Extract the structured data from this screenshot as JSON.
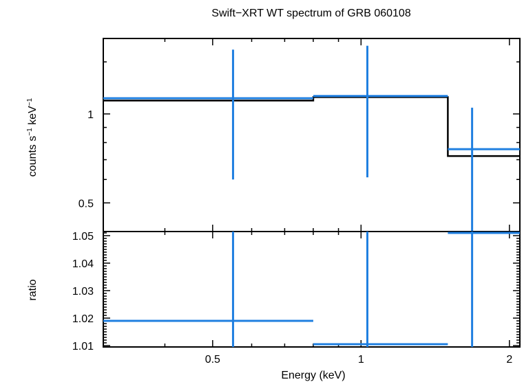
{
  "chart_data": [
    {
      "type": "step",
      "title": "Swift−XRT WT spectrum of GRB 060108",
      "xlabel": "",
      "ylabel_main": "counts s",
      "ylabel_exp1": "−1",
      "ylabel_mid": " keV",
      "ylabel_exp2": "−1",
      "xscale": "log",
      "yscale": "log",
      "xlim": [
        0.3,
        2.1
      ],
      "ylim": [
        0.4,
        1.8
      ],
      "yticks": [
        0.5,
        1
      ],
      "ytick_labels": [
        "0.5",
        "1"
      ],
      "data": {
        "name": "data",
        "color": "#1f7fe0",
        "points": [
          {
            "x": 0.55,
            "xlo": 0.3,
            "xhi": 0.8,
            "y": 1.13,
            "ylo": 0.6,
            "yhi": 1.65
          },
          {
            "x": 1.03,
            "xlo": 0.8,
            "xhi": 1.5,
            "y": 1.15,
            "ylo": 0.61,
            "yhi": 1.7
          },
          {
            "x": 1.68,
            "xlo": 1.5,
            "xhi": 2.1,
            "y": 0.76,
            "ylo": 0.4,
            "yhi": 1.05
          }
        ]
      },
      "model": {
        "name": "model",
        "color": "#000000",
        "steps": [
          {
            "xlo": 0.3,
            "xhi": 0.8,
            "y": 1.11
          },
          {
            "xlo": 0.8,
            "xhi": 1.5,
            "y": 1.14
          },
          {
            "xlo": 1.5,
            "xhi": 2.1,
            "y": 0.72
          }
        ]
      }
    },
    {
      "type": "step",
      "xlabel": "Energy (keV)",
      "ylabel": "ratio",
      "xscale": "log",
      "xlim": [
        0.3,
        2.1
      ],
      "ylim": [
        1.0095,
        1.0515
      ],
      "yticks": [
        1.01,
        1.02,
        1.03,
        1.04,
        1.05
      ],
      "ytick_labels": [
        "1.01",
        "1.02",
        "1.03",
        "1.04",
        "1.05"
      ],
      "xticks": [
        0.5,
        1,
        2
      ],
      "xtick_labels": [
        "0.5",
        "1",
        "2"
      ],
      "data": {
        "name": "ratio",
        "color": "#1f7fe0",
        "points": [
          {
            "x": 0.55,
            "xlo": 0.3,
            "xhi": 0.8,
            "y": 1.019,
            "ylo": 1.0095,
            "yhi": 1.0515
          },
          {
            "x": 1.03,
            "xlo": 0.8,
            "xhi": 1.5,
            "y": 1.0105,
            "ylo": 1.0095,
            "yhi": 1.0515
          },
          {
            "x": 1.68,
            "xlo": 1.5,
            "xhi": 2.1,
            "y": 1.051,
            "ylo": 1.0095,
            "yhi": 1.0515
          }
        ]
      }
    }
  ]
}
